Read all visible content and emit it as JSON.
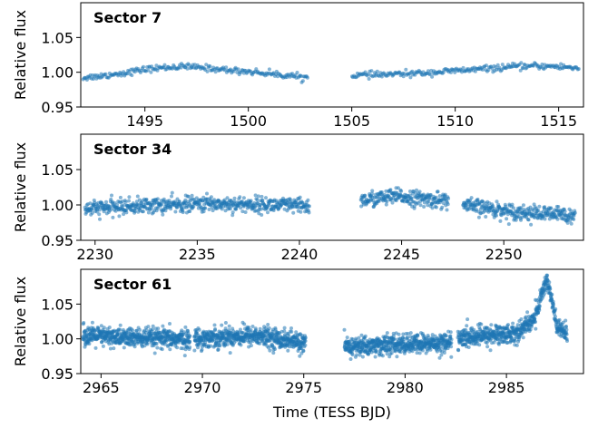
{
  "colors": {
    "points": "#1f77b4"
  },
  "figure": {
    "xlabel": "Time (TESS BJD)"
  },
  "chart_data": [
    {
      "type": "scatter",
      "title": "Sector 7",
      "ylabel": "Relative flux",
      "xlabel": "",
      "xlim": [
        1491.9,
        1516.2
      ],
      "ylim": [
        0.95,
        1.1
      ],
      "xticks": [
        1495,
        1500,
        1505,
        1510,
        1515
      ],
      "yticks": [
        0.95,
        1.0,
        1.05
      ],
      "series": [
        {
          "x": [
            1492.0,
            1493.0,
            1494.0,
            1495.0,
            1496.0,
            1497.0,
            1498.0,
            1499.0,
            1500.0,
            1501.0,
            1502.0,
            1502.9
          ],
          "values": [
            0.992,
            0.995,
            0.999,
            1.004,
            1.007,
            1.008,
            1.006,
            1.003,
            1.001,
            0.998,
            0.995,
            0.992
          ]
        },
        {
          "x": [
            1505.0,
            1506.0,
            1507.0,
            1508.0,
            1509.0,
            1510.0,
            1511.0,
            1512.0,
            1513.0,
            1514.0,
            1515.0,
            1516.0
          ],
          "values": [
            0.996,
            0.996,
            0.997,
            0.998,
            1.0,
            1.002,
            1.004,
            1.006,
            1.008,
            1.009,
            1.008,
            1.006
          ]
        }
      ]
    },
    {
      "type": "scatter",
      "title": "Sector 34",
      "ylabel": "Relative flux",
      "xlabel": "",
      "xlim": [
        2229.3,
        2253.9
      ],
      "ylim": [
        0.95,
        1.1
      ],
      "xticks": [
        2230,
        2235,
        2240,
        2245,
        2250
      ],
      "yticks": [
        0.95,
        1.0,
        1.05
      ],
      "series": [
        {
          "x": [
            2229.5,
            2231.0,
            2232.5,
            2234.0,
            2235.5,
            2237.0,
            2238.5,
            2240.5
          ],
          "values": [
            0.994,
            0.997,
            0.999,
            1.0,
            1.002,
            1.001,
            1.0,
            0.998
          ]
        },
        {
          "x": [
            2243.0,
            2244.0,
            2245.0,
            2246.0,
            2247.3
          ],
          "values": [
            1.006,
            1.01,
            1.012,
            1.008,
            1.006
          ]
        },
        {
          "x": [
            2248.0,
            2249.0,
            2250.0,
            2251.0,
            2252.0,
            2253.5
          ],
          "values": [
            0.999,
            0.996,
            0.992,
            0.989,
            0.987,
            0.986
          ]
        }
      ]
    },
    {
      "type": "scatter",
      "title": "Sector 61",
      "ylabel": "Relative flux",
      "xlabel": "Time (TESS BJD)",
      "xlim": [
        2964.0,
        2988.8
      ],
      "ylim": [
        0.95,
        1.1
      ],
      "xticks": [
        2965,
        2970,
        2975,
        2980,
        2985
      ],
      "yticks": [
        0.95,
        1.0,
        1.05
      ],
      "series": [
        {
          "x": [
            2964.1,
            2966.0,
            2968.0,
            2969.4
          ],
          "values": [
            1.005,
            1.002,
            1.0,
            0.999
          ]
        },
        {
          "x": [
            2969.6,
            2971.0,
            2972.5,
            2974.0,
            2975.1
          ],
          "values": [
            1.0,
            1.003,
            1.005,
            0.999,
            0.993
          ]
        },
        {
          "x": [
            2977.0,
            2979.0,
            2981.0,
            2982.3
          ],
          "values": [
            0.988,
            0.991,
            0.993,
            0.995
          ]
        },
        {
          "x": [
            2982.6,
            2984.0,
            2985.5,
            2986.4,
            2986.8,
            2987.0,
            2987.2,
            2987.5,
            2988.0
          ],
          "values": [
            1.0,
            1.005,
            1.008,
            1.03,
            1.07,
            1.085,
            1.06,
            1.015,
            1.008
          ]
        }
      ]
    }
  ]
}
